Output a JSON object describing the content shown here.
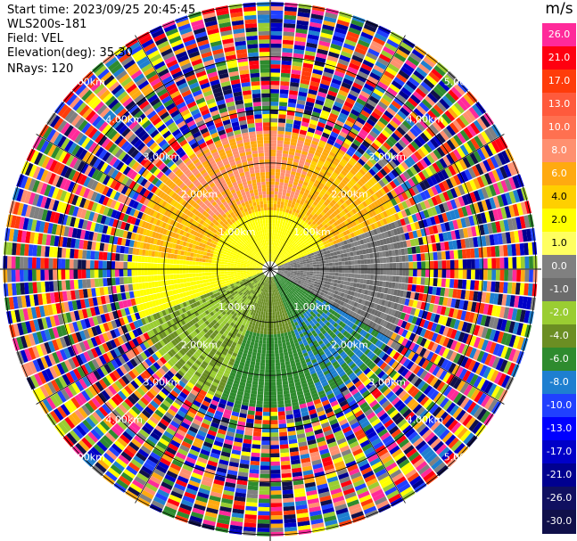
{
  "header": {
    "start_time": "Start time: 2023/09/25 20:45:45",
    "instrument": "WLS200s-181",
    "field": "Field: VEL",
    "elevation": "Elevation(deg): 35.30",
    "nrays": "NRays: 120"
  },
  "colorbar": {
    "unit": "m/s",
    "segments": [
      {
        "label": "26.0",
        "color": "#ff2a9a"
      },
      {
        "label": "21.0",
        "color": "#ff0010"
      },
      {
        "label": "17.0",
        "color": "#ff3c0a"
      },
      {
        "label": "13.0",
        "color": "#ff5a3c"
      },
      {
        "label": "10.0",
        "color": "#ff7050"
      },
      {
        "label": "8.0",
        "color": "#ff9070"
      },
      {
        "label": "6.0",
        "color": "#ffaa10"
      },
      {
        "label": "4.0",
        "color": "#ffcf00"
      },
      {
        "label": "2.0",
        "color": "#ffff00"
      },
      {
        "label": "1.0",
        "color": "#ffff60"
      },
      {
        "label": "0.0",
        "color": "#808080"
      },
      {
        "label": "-1.0",
        "color": "#6c6c6c"
      },
      {
        "label": "-2.0",
        "color": "#9acd32"
      },
      {
        "label": "-4.0",
        "color": "#6b8e23"
      },
      {
        "label": "-6.0",
        "color": "#2e8b2e"
      },
      {
        "label": "-8.0",
        "color": "#1e7fd0"
      },
      {
        "label": "-10.0",
        "color": "#2040ff"
      },
      {
        "label": "-13.0",
        "color": "#0000ff"
      },
      {
        "label": "-17.0",
        "color": "#0000c8"
      },
      {
        "label": "-21.0",
        "color": "#000090"
      },
      {
        "label": "-26.0",
        "color": "#101060"
      },
      {
        "label": "-30.0",
        "color": "#10104a"
      }
    ]
  },
  "rings": [
    {
      "label": "1.00km",
      "km": 1
    },
    {
      "label": "2.00km",
      "km": 2
    },
    {
      "label": "3.00km",
      "km": 3
    },
    {
      "label": "4.00km",
      "km": 4
    },
    {
      "label": "5.00km",
      "km": 5
    }
  ]
}
